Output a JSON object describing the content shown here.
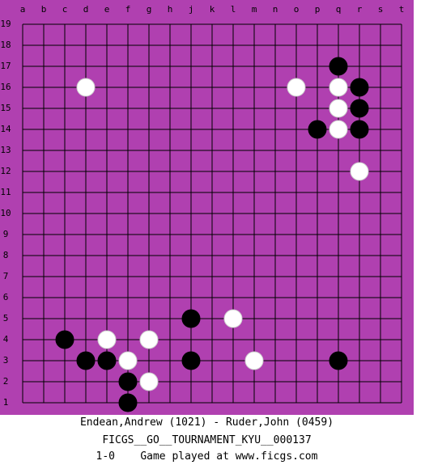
{
  "board": {
    "columns": [
      "a",
      "b",
      "c",
      "d",
      "e",
      "f",
      "g",
      "h",
      "j",
      "k",
      "l",
      "m",
      "n",
      "o",
      "p",
      "q",
      "r",
      "s",
      "t"
    ],
    "rows": [
      19,
      18,
      17,
      16,
      15,
      14,
      13,
      12,
      11,
      10,
      9,
      8,
      7,
      6,
      5,
      4,
      3,
      2,
      1
    ],
    "stones": [
      {
        "color": "black",
        "col": "q",
        "row": 17
      },
      {
        "color": "white",
        "col": "d",
        "row": 16
      },
      {
        "color": "white",
        "col": "o",
        "row": 16
      },
      {
        "color": "white",
        "col": "q",
        "row": 16
      },
      {
        "color": "black",
        "col": "r",
        "row": 16
      },
      {
        "color": "white",
        "col": "q",
        "row": 15
      },
      {
        "color": "black",
        "col": "r",
        "row": 15
      },
      {
        "color": "black",
        "col": "p",
        "row": 14
      },
      {
        "color": "white",
        "col": "q",
        "row": 14
      },
      {
        "color": "black",
        "col": "r",
        "row": 14
      },
      {
        "color": "white",
        "col": "r",
        "row": 12
      },
      {
        "color": "black",
        "col": "j",
        "row": 5
      },
      {
        "color": "white",
        "col": "l",
        "row": 5
      },
      {
        "color": "black",
        "col": "c",
        "row": 4
      },
      {
        "color": "white",
        "col": "e",
        "row": 4
      },
      {
        "color": "white",
        "col": "g",
        "row": 4
      },
      {
        "color": "black",
        "col": "d",
        "row": 3
      },
      {
        "color": "black",
        "col": "e",
        "row": 3
      },
      {
        "color": "white",
        "col": "f",
        "row": 3
      },
      {
        "color": "black",
        "col": "j",
        "row": 3
      },
      {
        "color": "white",
        "col": "m",
        "row": 3
      },
      {
        "color": "black",
        "col": "q",
        "row": 3
      },
      {
        "color": "black",
        "col": "f",
        "row": 2
      },
      {
        "color": "white",
        "col": "g",
        "row": 2
      },
      {
        "color": "black",
        "col": "f",
        "row": 1
      }
    ]
  },
  "footer": {
    "players": "Endean,Andrew (1021) - Ruder,John (0459)",
    "event": "FICGS__GO__TOURNAMENT_KYU__000137",
    "result_line": "1-0    Game played at www.ficgs.com"
  }
}
